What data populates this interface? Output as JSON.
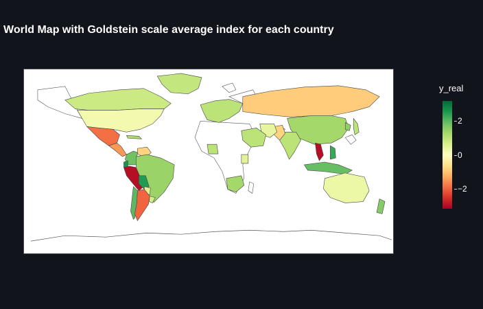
{
  "title": "World Map with Goldstein scale average index for each country",
  "colorbar": {
    "title": "y_real",
    "ticks": [
      {
        "label": "2",
        "value": 2
      },
      {
        "label": "0",
        "value": 0
      },
      {
        "label": "−2",
        "value": -2
      }
    ],
    "range": [
      -3.2,
      3.2
    ],
    "colorscale": [
      "#a50026",
      "#d73027",
      "#f46d43",
      "#fdae61",
      "#fee08b",
      "#ffffbf",
      "#d9ef8b",
      "#a6d96a",
      "#66bd63",
      "#1a9850",
      "#006837"
    ]
  },
  "colors": {
    "background": "#11141b",
    "map_background": "#ffffff",
    "coastline": "#444444"
  },
  "chart_data": {
    "type": "choropleth",
    "title": "World Map with Goldstein scale average index for each country",
    "colorbar_title": "y_real",
    "zrange": [
      -3.2,
      3.2
    ],
    "countries": [
      {
        "name": "Canada",
        "value": 0.8
      },
      {
        "name": "United States",
        "value": 0.2
      },
      {
        "name": "Mexico",
        "value": -1.9
      },
      {
        "name": "Central America",
        "value": -1.5
      },
      {
        "name": "Cuba",
        "value": 1.2
      },
      {
        "name": "Venezuela",
        "value": -0.8
      },
      {
        "name": "Colombia",
        "value": 1.8
      },
      {
        "name": "Ecuador",
        "value": 2.6
      },
      {
        "name": "Peru",
        "value": -3.0
      },
      {
        "name": "Brazil",
        "value": 1.4
      },
      {
        "name": "Bolivia",
        "value": 2.5
      },
      {
        "name": "Paraguay",
        "value": 0.5
      },
      {
        "name": "Chile",
        "value": 2.0
      },
      {
        "name": "Argentina",
        "value": -2.0
      },
      {
        "name": "Uruguay",
        "value": 0.7
      },
      {
        "name": "Greenland",
        "value": 0.9
      },
      {
        "name": "Western Europe",
        "value": 1.0
      },
      {
        "name": "Russia",
        "value": -0.9
      },
      {
        "name": "China",
        "value": 1.3
      },
      {
        "name": "Vietnam",
        "value": -3.0
      },
      {
        "name": "Philippines",
        "value": 2.3
      },
      {
        "name": "India",
        "value": 1.0
      },
      {
        "name": "Pakistan",
        "value": -0.8
      },
      {
        "name": "Iran",
        "value": 0.4
      },
      {
        "name": "Saudi Arabia",
        "value": 1.0
      },
      {
        "name": "Indonesia",
        "value": 1.9
      },
      {
        "name": "Australia",
        "value": 0.3
      },
      {
        "name": "New Zealand",
        "value": 1.6
      },
      {
        "name": "Nigeria",
        "value": 1.0
      },
      {
        "name": "Kenya",
        "value": 0.5
      },
      {
        "name": "South Africa",
        "value": 1.3
      },
      {
        "name": "Japan",
        "value": 1.0
      },
      {
        "name": "Korea",
        "value": 1.5
      }
    ]
  }
}
